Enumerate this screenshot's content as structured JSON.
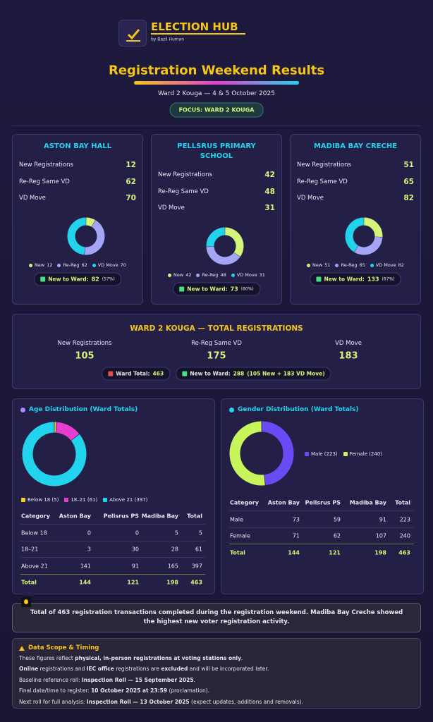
{
  "header": {
    "brand": "ELECTION HUB",
    "byline": "by Bazil Human",
    "title": "Registration Weekend Results",
    "subtitle": "Ward 2 Kouga — 4 & 5 October 2025",
    "focus": "FOCUS: WARD 2 KOUGA"
  },
  "station_legend": [
    "New",
    "Re-Reg",
    "VD Move"
  ],
  "station_colors": [
    "#d4f57a",
    "#a5a5f5",
    "#22d3ee"
  ],
  "stations": [
    {
      "name": "ASTON BAY HALL",
      "stats": [
        {
          "label": "New Registrations",
          "value": 12
        },
        {
          "label": "Re-Reg Same VD",
          "value": 62
        },
        {
          "label": "VD Move",
          "value": 70
        }
      ],
      "badge": {
        "label": "New to Ward:",
        "value": 82,
        "pct": "(57%)"
      }
    },
    {
      "name": "PELLSRUS PRIMARY SCHOOL",
      "stats": [
        {
          "label": "New Registrations",
          "value": 42
        },
        {
          "label": "Re-Reg Same VD",
          "value": 48
        },
        {
          "label": "VD Move",
          "value": 31
        }
      ],
      "badge": {
        "label": "New to Ward:",
        "value": 73,
        "pct": "(60%)"
      }
    },
    {
      "name": "MADIBA BAY CRECHE",
      "stats": [
        {
          "label": "New Registrations",
          "value": 51
        },
        {
          "label": "Re-Reg Same VD",
          "value": 65
        },
        {
          "label": "VD Move",
          "value": 82
        }
      ],
      "badge": {
        "label": "New to Ward:",
        "value": 133,
        "pct": "(67%)"
      }
    }
  ],
  "ward_total": {
    "title": "WARD 2 KOUGA — TOTAL REGISTRATIONS",
    "items": [
      {
        "label": "New Registrations",
        "value": 105
      },
      {
        "label": "Re-Reg Same VD",
        "value": 175
      },
      {
        "label": "VD Move",
        "value": 183
      }
    ],
    "badges": [
      {
        "label": "Ward Total:",
        "value": 463
      },
      {
        "label": "New to Ward:",
        "value": 288,
        "note": "(105 New + 183 VD Move)"
      }
    ]
  },
  "age": {
    "title": "Age Distribution (Ward Totals)",
    "legend": [
      "Below 18 (5)",
      "18–21 (61)",
      "Above 21 (397)"
    ],
    "colors": [
      "#f5d020",
      "#e83ed0",
      "#22d3ee"
    ],
    "table": {
      "columns": [
        "Category",
        "Aston Bay",
        "Pellsrus PS",
        "Madiba Bay",
        "Total"
      ],
      "rows": [
        [
          "Below 18",
          0,
          0,
          5,
          5
        ],
        [
          "18–21",
          3,
          30,
          28,
          61
        ],
        [
          "Above 21",
          141,
          91,
          165,
          397
        ]
      ],
      "total": [
        "Total",
        144,
        121,
        198,
        463
      ]
    }
  },
  "gender": {
    "title": "Gender Distribution (Ward Totals)",
    "legend": [
      "Male (223)",
      "Female (240)"
    ],
    "colors": [
      "#6a4af5",
      "#c8f55a"
    ],
    "table": {
      "columns": [
        "Category",
        "Aston Bay",
        "Pellsrus PS",
        "Madiba Bay",
        "Total"
      ],
      "rows": [
        [
          "Male",
          73,
          59,
          91,
          223
        ],
        [
          "Female",
          71,
          62,
          107,
          240
        ]
      ],
      "total": [
        "Total",
        144,
        121,
        198,
        463
      ]
    }
  },
  "summary": [
    {
      "t": "Total of "
    },
    {
      "t": "463",
      "b": true
    },
    {
      "t": " registration transactions completed during the registration weekend. "
    },
    {
      "t": "Madiba Bay Creche",
      "b": true
    },
    {
      "t": " showed the highest new voter registration activity."
    }
  ],
  "scope": {
    "title": "Data Scope & Timing",
    "lines": [
      [
        {
          "t": "These figures reflect "
        },
        {
          "t": "physical, in-person registrations at voting stations only",
          "b": true
        },
        {
          "t": "."
        }
      ],
      [
        {
          "t": "Online",
          "b": true
        },
        {
          "t": " registrations and "
        },
        {
          "t": "IEC office",
          "b": true
        },
        {
          "t": " registrations are "
        },
        {
          "t": "excluded",
          "b": true
        },
        {
          "t": " and will be incorporated later."
        }
      ],
      [
        {
          "t": "Baseline reference roll: "
        },
        {
          "t": "Inspection Roll — 15 September 2025",
          "b": true
        },
        {
          "t": "."
        }
      ],
      [
        {
          "t": "Final date/time to register: "
        },
        {
          "t": "10 October 2025 at 23:59",
          "b": true
        },
        {
          "t": " (proclamation)."
        }
      ],
      [
        {
          "t": "Next roll for full analysis: "
        },
        {
          "t": "Inspection Roll — 13 October 2025",
          "b": true
        },
        {
          "t": " (expect updates, additions and removals)."
        }
      ]
    ]
  }
}
